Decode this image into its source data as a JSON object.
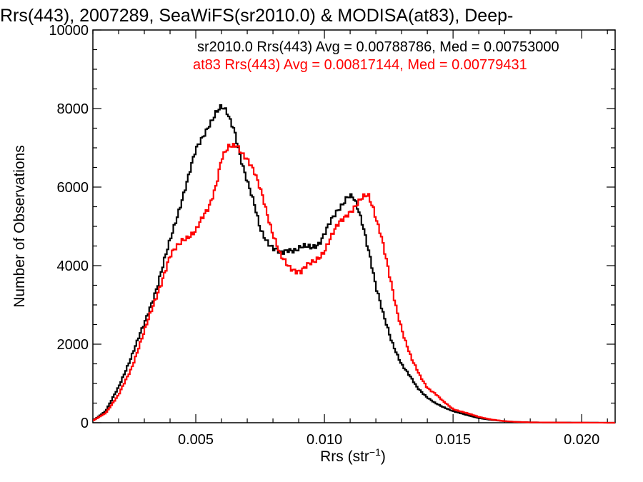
{
  "chart_data": {
    "type": "line",
    "title": "Rrs(443), 2007289, SeaWiFS(sr2010.0) & MODISA(at83), Deep-",
    "xlabel": {
      "base": "Rrs (str",
      "sup": "−1",
      "close": ")"
    },
    "ylabel": "Number of Observations",
    "xlim": [
      0.001,
      0.0213
    ],
    "ylim": [
      0,
      10000
    ],
    "xticks": [
      0.005,
      0.01,
      0.015,
      0.02
    ],
    "xtick_labels": [
      "0.005",
      "0.010",
      "0.015",
      "0.020"
    ],
    "yticks": [
      0,
      2000,
      4000,
      6000,
      8000,
      10000
    ],
    "ytick_labels": [
      "0",
      "2000",
      "4000",
      "6000",
      "8000",
      "10000"
    ],
    "grid": false,
    "legend": "top-right",
    "series": [
      {
        "name": "sr2010.0",
        "color": "#000000",
        "annotation": "sr2010.0 Rrs(443) Avg = 0.00788786, Med = 0.00753000",
        "x": [
          0.001,
          0.0015,
          0.002,
          0.0025,
          0.003,
          0.0035,
          0.004,
          0.0045,
          0.005,
          0.0055,
          0.0058,
          0.006,
          0.0062,
          0.0065,
          0.0068,
          0.007,
          0.0073,
          0.0075,
          0.0078,
          0.008,
          0.0083,
          0.0086,
          0.0089,
          0.0092,
          0.0095,
          0.0098,
          0.01,
          0.0103,
          0.0106,
          0.0109,
          0.0111,
          0.0113,
          0.0115,
          0.0118,
          0.012,
          0.0123,
          0.0126,
          0.013,
          0.0133,
          0.0136,
          0.014,
          0.0143,
          0.0146,
          0.015,
          0.0155,
          0.016,
          0.0165,
          0.017,
          0.0175,
          0.018,
          0.019,
          0.02,
          0.0213
        ],
        "y": [
          50,
          300,
          900,
          1700,
          2500,
          3500,
          4600,
          5800,
          6900,
          7600,
          7900,
          8000,
          7900,
          7500,
          6600,
          6100,
          5500,
          5000,
          4600,
          4400,
          4300,
          4450,
          4400,
          4450,
          4480,
          4600,
          4800,
          5150,
          5500,
          5800,
          5750,
          5400,
          5000,
          4200,
          3500,
          2700,
          2100,
          1500,
          1200,
          900,
          650,
          500,
          400,
          300,
          200,
          120,
          70,
          40,
          20,
          10,
          5,
          3,
          0
        ]
      },
      {
        "name": "at83",
        "color": "#ff0000",
        "annotation": "at83 Rrs(443) Avg = 0.00817144, Med = 0.00779431",
        "x": [
          0.001,
          0.0015,
          0.002,
          0.0025,
          0.003,
          0.0035,
          0.004,
          0.0045,
          0.005,
          0.0055,
          0.0058,
          0.006,
          0.0063,
          0.0066,
          0.007,
          0.0073,
          0.0076,
          0.008,
          0.0083,
          0.0086,
          0.0089,
          0.0091,
          0.0093,
          0.0096,
          0.01,
          0.0103,
          0.0106,
          0.0109,
          0.0112,
          0.0115,
          0.0117,
          0.0119,
          0.0122,
          0.0125,
          0.0128,
          0.0131,
          0.0134,
          0.0137,
          0.014,
          0.0143,
          0.0146,
          0.015,
          0.0155,
          0.016,
          0.0165,
          0.017,
          0.0175,
          0.018,
          0.019,
          0.02,
          0.0213
        ],
        "y": [
          50,
          250,
          700,
          1400,
          2300,
          3300,
          4200,
          4700,
          4850,
          5500,
          6100,
          6700,
          7000,
          7100,
          6700,
          6300,
          5800,
          4800,
          4200,
          4000,
          3900,
          3850,
          3950,
          4100,
          4400,
          4750,
          5100,
          5350,
          5500,
          5700,
          5800,
          5500,
          4800,
          3800,
          2900,
          2200,
          1600,
          1200,
          900,
          750,
          550,
          350,
          250,
          150,
          80,
          40,
          20,
          10,
          5,
          2,
          0
        ]
      }
    ]
  }
}
